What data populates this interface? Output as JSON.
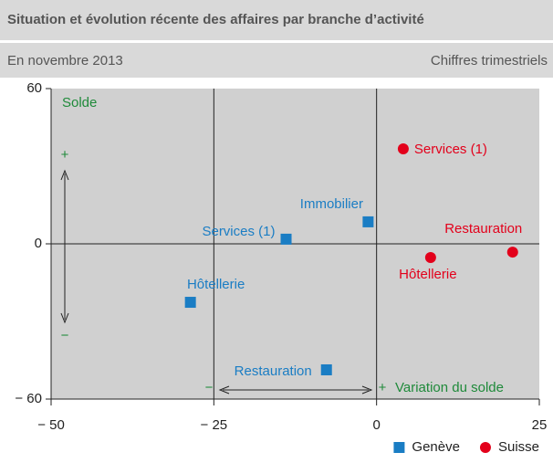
{
  "chart_data": {
    "type": "scatter",
    "title": "Situation et évolution récente des affaires par branche d’activité",
    "subtitle": "En novembre 2013",
    "note": "Chiffres trimestriels",
    "xlim": [
      -50,
      25
    ],
    "xticks": [
      {
        "value": -50,
        "label": "− 50"
      },
      {
        "value": -25,
        "label": "− 25"
      },
      0,
      25
    ],
    "ylim": [
      -60,
      60
    ],
    "yticks": [
      {
        "value": -60,
        "label": "− 60"
      },
      0,
      60
    ],
    "annotations": {
      "y_label": "Solde",
      "y_plus": "+",
      "y_minus": "−",
      "x_label": "Variation du solde",
      "x_plus": "+",
      "x_minus": "−"
    },
    "annotation_color": "#1f8a3a",
    "legend": "bottom-right",
    "series": [
      {
        "name": "Genève",
        "color": "#1a7dc4",
        "marker": "square",
        "labels": [
          "Immobilier",
          "Services (1)",
          "Hôtellerie",
          "Restauration"
        ],
        "x": [
          -1.3,
          -13.9,
          -28.6,
          -7.7
        ],
        "values": [
          8.5,
          1.8,
          -22.6,
          -48.7
        ]
      },
      {
        "name": "Suisse",
        "color": "#e3001b",
        "marker": "circle",
        "labels": [
          "Services (1)",
          "Hôtellerie",
          "Restauration"
        ],
        "x": [
          4.1,
          8.3,
          20.9
        ],
        "values": [
          36.7,
          -5.3,
          -3.2
        ]
      }
    ]
  }
}
